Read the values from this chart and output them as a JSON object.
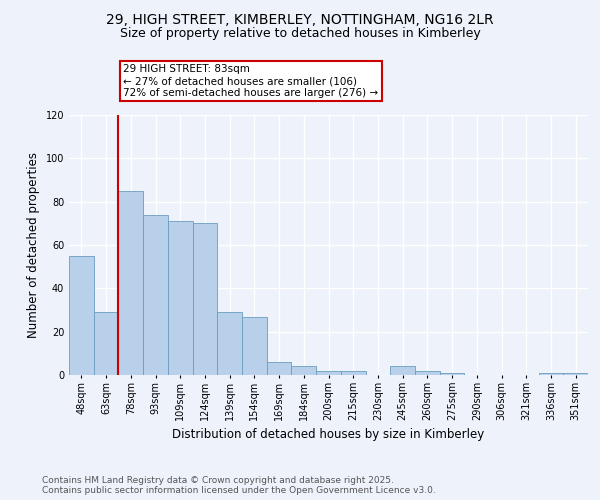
{
  "title_line1": "29, HIGH STREET, KIMBERLEY, NOTTINGHAM, NG16 2LR",
  "title_line2": "Size of property relative to detached houses in Kimberley",
  "xlabel": "Distribution of detached houses by size in Kimberley",
  "ylabel": "Number of detached properties",
  "categories": [
    "48sqm",
    "63sqm",
    "78sqm",
    "93sqm",
    "109sqm",
    "124sqm",
    "139sqm",
    "154sqm",
    "169sqm",
    "184sqm",
    "200sqm",
    "215sqm",
    "230sqm",
    "245sqm",
    "260sqm",
    "275sqm",
    "290sqm",
    "306sqm",
    "321sqm",
    "336sqm",
    "351sqm"
  ],
  "values": [
    55,
    29,
    85,
    74,
    71,
    70,
    29,
    27,
    6,
    4,
    2,
    2,
    0,
    4,
    2,
    1,
    0,
    0,
    0,
    1,
    1
  ],
  "bar_color": "#b8d0ea",
  "bar_edge_color": "#6a9ec0",
  "vline_x": 1.5,
  "vline_color": "#cc0000",
  "annotation_text": "29 HIGH STREET: 83sqm\n← 27% of detached houses are smaller (106)\n72% of semi-detached houses are larger (276) →",
  "annotation_box_color": "#ffffff",
  "annotation_box_edge_color": "#cc0000",
  "ylim": [
    0,
    120
  ],
  "yticks": [
    0,
    20,
    40,
    60,
    80,
    100,
    120
  ],
  "footer_text": "Contains HM Land Registry data © Crown copyright and database right 2025.\nContains public sector information licensed under the Open Government Licence v3.0.",
  "background_color": "#edf2fb",
  "grid_color": "#ffffff",
  "title_fontsize": 10,
  "subtitle_fontsize": 9,
  "axis_label_fontsize": 8.5,
  "tick_fontsize": 7,
  "footer_fontsize": 6.5,
  "ann_fontsize": 7.5
}
